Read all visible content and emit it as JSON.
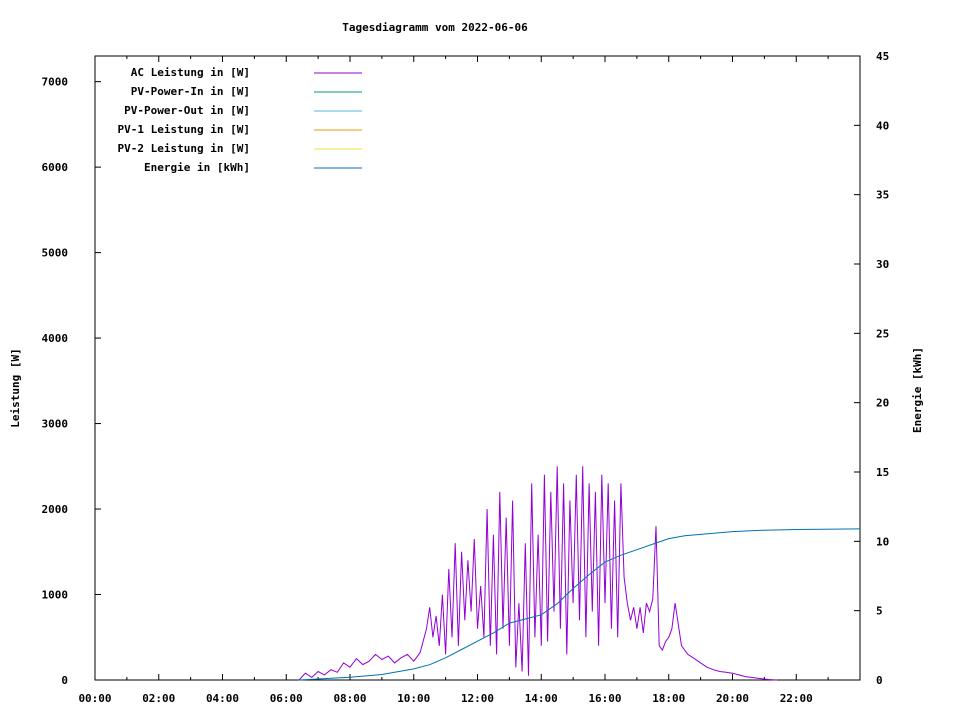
{
  "chart_data": {
    "type": "line",
    "title": "Tagesdiagramm vom 2022-06-06",
    "ylabel": "Leistung [W]",
    "y2label": "Energie [kWh]",
    "xlim": [
      "00:00",
      "24:00"
    ],
    "ylim": [
      0,
      7300
    ],
    "y2lim": [
      0,
      45
    ],
    "x_ticks": [
      "00:00",
      "02:00",
      "04:00",
      "06:00",
      "08:00",
      "10:00",
      "12:00",
      "14:00",
      "16:00",
      "18:00",
      "20:00",
      "22:00"
    ],
    "x_tick_hours": [
      0,
      2,
      4,
      6,
      8,
      10,
      12,
      14,
      16,
      18,
      20,
      22
    ],
    "y_ticks": [
      0,
      1000,
      2000,
      3000,
      4000,
      5000,
      6000,
      7000
    ],
    "y2_ticks": [
      0,
      5,
      10,
      15,
      20,
      25,
      30,
      35,
      40,
      45
    ],
    "legend_position": "top-left",
    "grid": false,
    "series": [
      {
        "name": "AC Leistung in [W]",
        "color": "#9400d3",
        "axis": "left",
        "x": [
          6.4,
          6.6,
          6.8,
          7.0,
          7.2,
          7.4,
          7.6,
          7.8,
          8.0,
          8.2,
          8.4,
          8.6,
          8.8,
          9.0,
          9.2,
          9.4,
          9.6,
          9.8,
          10.0,
          10.2,
          10.4,
          10.5,
          10.6,
          10.7,
          10.8,
          10.9,
          11.0,
          11.1,
          11.2,
          11.3,
          11.4,
          11.5,
          11.6,
          11.7,
          11.8,
          11.9,
          12.0,
          12.1,
          12.2,
          12.3,
          12.4,
          12.5,
          12.6,
          12.7,
          12.8,
          12.9,
          13.0,
          13.1,
          13.2,
          13.3,
          13.4,
          13.5,
          13.6,
          13.7,
          13.8,
          13.9,
          14.0,
          14.1,
          14.2,
          14.3,
          14.4,
          14.5,
          14.6,
          14.7,
          14.8,
          14.9,
          15.0,
          15.1,
          15.2,
          15.3,
          15.4,
          15.5,
          15.6,
          15.7,
          15.8,
          15.9,
          16.0,
          16.1,
          16.2,
          16.3,
          16.4,
          16.5,
          16.6,
          16.7,
          16.8,
          16.9,
          17.0,
          17.1,
          17.2,
          17.3,
          17.4,
          17.5,
          17.6,
          17.7,
          17.8,
          17.9,
          18.0,
          18.1,
          18.2,
          18.4,
          18.6,
          18.8,
          19.0,
          19.2,
          19.4,
          19.6,
          19.8,
          20.0,
          20.2,
          20.4,
          20.6,
          20.8,
          21.0,
          21.2,
          21.4
        ],
        "values": [
          0,
          80,
          30,
          100,
          60,
          120,
          90,
          200,
          150,
          250,
          180,
          220,
          300,
          240,
          280,
          200,
          260,
          300,
          220,
          320,
          600,
          850,
          500,
          750,
          400,
          1000,
          300,
          1300,
          500,
          1600,
          400,
          1500,
          700,
          1400,
          800,
          1650,
          600,
          1100,
          500,
          2000,
          400,
          1700,
          300,
          2200,
          600,
          1900,
          400,
          2100,
          150,
          900,
          100,
          1600,
          50,
          2300,
          500,
          1700,
          400,
          2400,
          450,
          2200,
          800,
          2500,
          600,
          2300,
          300,
          2100,
          900,
          2400,
          700,
          2500,
          500,
          2300,
          800,
          2200,
          400,
          2400,
          900,
          2300,
          600,
          2100,
          500,
          2300,
          1200,
          900,
          700,
          850,
          600,
          850,
          550,
          900,
          800,
          950,
          1800,
          400,
          350,
          450,
          500,
          600,
          900,
          400,
          300,
          250,
          200,
          150,
          120,
          100,
          90,
          80,
          60,
          40,
          30,
          20,
          10,
          5,
          0
        ]
      },
      {
        "name": "PV-Power-In in [W]",
        "color": "#009e73",
        "axis": "left",
        "x": [],
        "values": []
      },
      {
        "name": "PV-Power-Out in [W]",
        "color": "#56b4e9",
        "axis": "left",
        "x": [],
        "values": []
      },
      {
        "name": "PV-1 Leistung in [W]",
        "color": "#e69f00",
        "axis": "left",
        "x": [],
        "values": []
      },
      {
        "name": "PV-2 Leistung in [W]",
        "color": "#f0e442",
        "axis": "left",
        "x": [],
        "values": []
      },
      {
        "name": "Energie in [kWh]",
        "color": "#0072b2",
        "axis": "right",
        "x": [
          6.4,
          8.0,
          9.0,
          10.0,
          10.5,
          11.0,
          11.5,
          12.0,
          12.5,
          13.0,
          13.5,
          14.0,
          14.5,
          15.0,
          15.5,
          16.0,
          16.5,
          17.0,
          17.5,
          18.0,
          18.5,
          19.0,
          19.5,
          20.0,
          20.5,
          21.0,
          22.0,
          24.0
        ],
        "values": [
          0,
          0.2,
          0.4,
          0.8,
          1.1,
          1.6,
          2.2,
          2.8,
          3.4,
          4.1,
          4.4,
          4.7,
          5.5,
          6.6,
          7.6,
          8.5,
          9.0,
          9.4,
          9.8,
          10.2,
          10.4,
          10.5,
          10.6,
          10.7,
          10.75,
          10.8,
          10.85,
          10.9
        ]
      }
    ]
  }
}
